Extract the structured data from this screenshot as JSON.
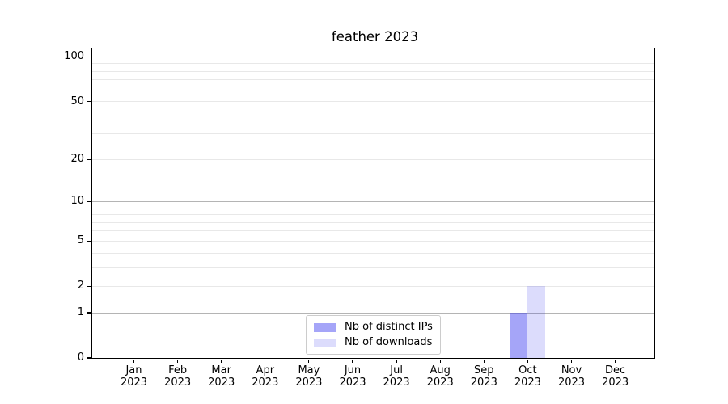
{
  "figure": {
    "title": "feather 2023"
  },
  "chart_data": {
    "type": "bar",
    "title": "feather 2023",
    "categories": [
      "Jan 2023",
      "Feb 2023",
      "Mar 2023",
      "Apr 2023",
      "May 2023",
      "Jun 2023",
      "Jul 2023",
      "Aug 2023",
      "Sep 2023",
      "Oct 2023",
      "Nov 2023",
      "Dec 2023"
    ],
    "series": [
      {
        "name": "Nb of distinct IPs",
        "color": "rgba(50,50,240,0.44)",
        "values": [
          0,
          0,
          0,
          0,
          0,
          0,
          0,
          0,
          0,
          1,
          0,
          0
        ]
      },
      {
        "name": "Nb of downloads",
        "color": "rgba(50,50,240,0.17)",
        "values": [
          0,
          0,
          0,
          0,
          0,
          0,
          0,
          0,
          0,
          2,
          0,
          0
        ]
      }
    ],
    "xlabel": "",
    "ylabel": "",
    "yscale": "log10(value+1)",
    "ylim": [
      0,
      114
    ],
    "yticks": [
      0,
      1,
      2,
      5,
      10,
      20,
      50,
      100
    ],
    "grid": {
      "major": [
        1,
        10,
        100
      ],
      "minor": [
        2,
        3,
        4,
        5,
        6,
        7,
        8,
        9,
        20,
        30,
        40,
        50,
        60,
        70,
        80,
        90
      ],
      "major_color": "#b4b4b4",
      "minor_color": "#e8e8e8"
    },
    "legend": {
      "position": "lower center",
      "entries": [
        "Nb of distinct IPs",
        "Nb of downloads"
      ]
    }
  }
}
